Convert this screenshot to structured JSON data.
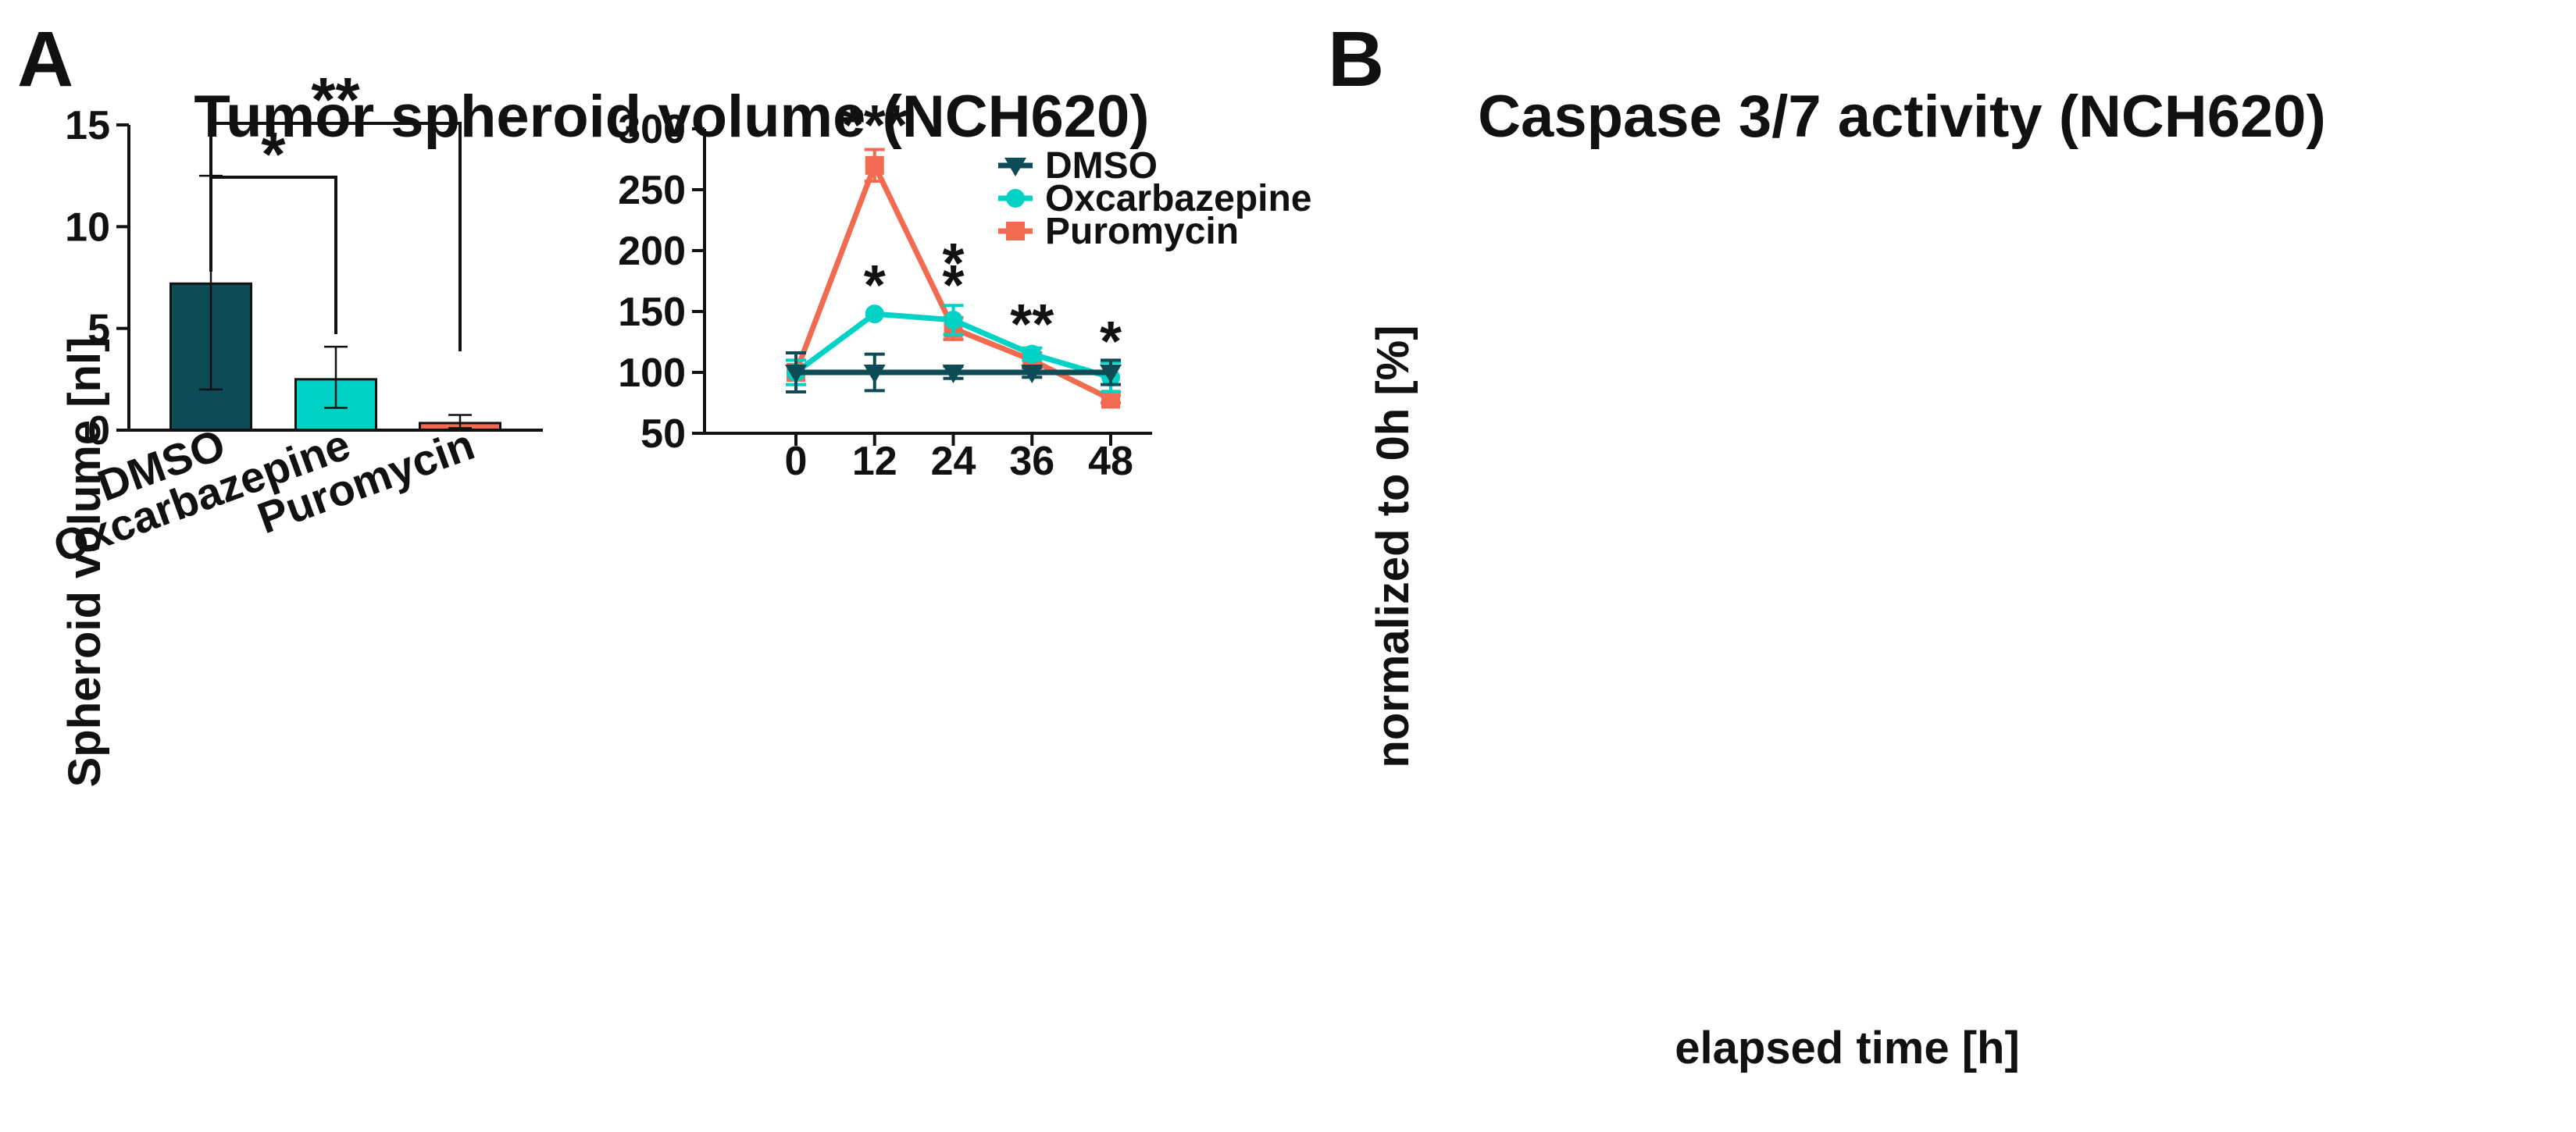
{
  "colors": {
    "dmso": "#0d4b57",
    "oxcarbazepine": "#00d3c6",
    "puromycin": "#f26b50",
    "axis": "#111111"
  },
  "chart_data": [
    {
      "panel": "A",
      "type": "bar",
      "title": "Tumor spheroid volume (NCH620)",
      "xlabel": "",
      "ylabel": "Spheroid volume [nl]",
      "ylim": [
        0,
        15
      ],
      "yticks": [
        "0",
        "5",
        "10",
        "15"
      ],
      "categories": [
        "DMSO",
        "Oxcarbazepine",
        "Puromycin"
      ],
      "values": [
        7.2,
        2.5,
        0.35
      ],
      "errors": [
        [
          2.0,
          12.5
        ],
        [
          1.1,
          4.1
        ],
        [
          0.1,
          0.75
        ]
      ],
      "significance": [
        {
          "from": "DMSO",
          "to": "Oxcarbazepine",
          "label": "*"
        },
        {
          "from": "DMSO",
          "to": "Puromycin",
          "label": "**"
        }
      ]
    },
    {
      "panel": "B",
      "type": "line",
      "title": "Caspase 3/7 activity (NCH620)",
      "xlabel": "elapsed time [h]",
      "ylabel": "normalized to 0h [%]",
      "x": [
        0,
        12,
        24,
        36,
        48
      ],
      "xticks": [
        "0",
        "12",
        "24",
        "36",
        "48"
      ],
      "ylim": [
        50,
        300
      ],
      "yticks": [
        "50",
        "100",
        "150",
        "200",
        "250",
        "300"
      ],
      "legend_position": "top-right",
      "series": [
        {
          "name": "DMSO",
          "marker": "triangle-down",
          "values": [
            100,
            100,
            100,
            100,
            100
          ],
          "err": [
            16,
            15,
            5,
            4,
            10
          ],
          "annotations": [
            "",
            "",
            "",
            "",
            ""
          ]
        },
        {
          "name": "Oxcarbazepine",
          "marker": "circle",
          "values": [
            100,
            148,
            143,
            115,
            96
          ],
          "err": [
            10,
            0,
            12,
            5,
            12
          ],
          "annotations": [
            "",
            "*",
            "*",
            "**",
            ""
          ]
        },
        {
          "name": "Puromycin",
          "marker": "square",
          "values": [
            100,
            270,
            136,
            110,
            78
          ],
          "err": [
            10,
            13,
            9,
            6,
            3
          ],
          "annotations": [
            "",
            "***",
            "*",
            "",
            "*"
          ]
        }
      ]
    }
  ]
}
